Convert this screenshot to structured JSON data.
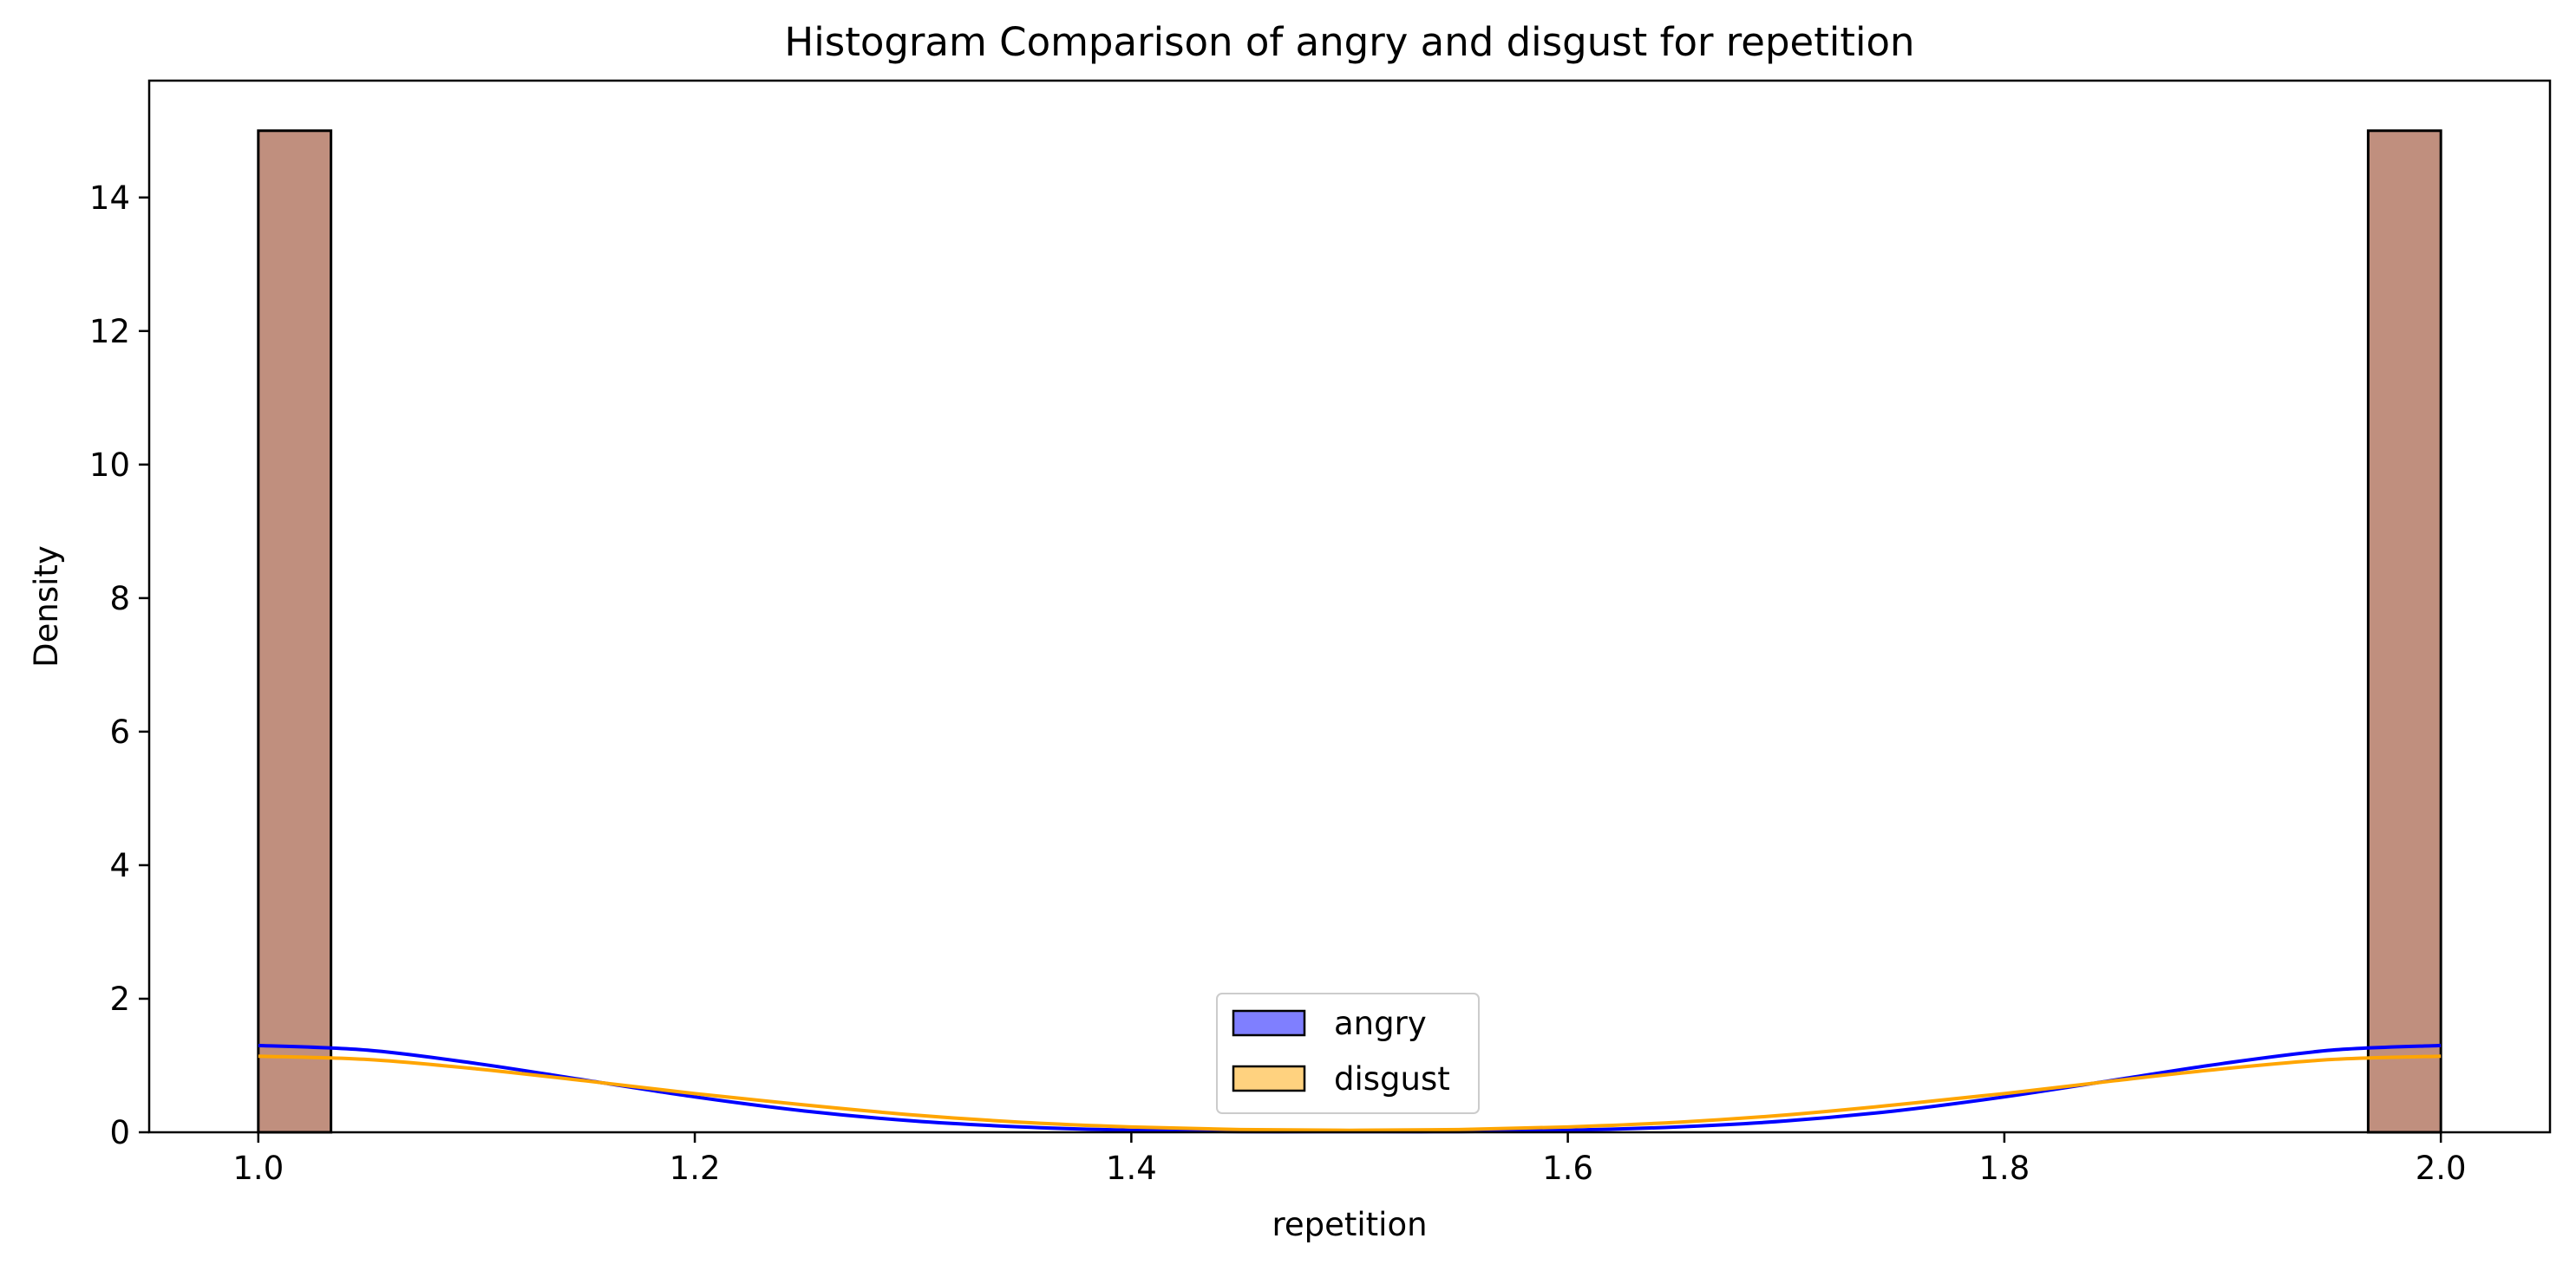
{
  "chart_data": {
    "type": "bar",
    "title": "Histogram Comparison of angry and disgust for repetition",
    "xlabel": "repetition",
    "ylabel": "Density",
    "xlim": [
      0.95,
      2.05
    ],
    "ylim": [
      0,
      15.75
    ],
    "x_ticks": [
      1.0,
      1.2,
      1.4,
      1.6,
      1.8,
      2.0
    ],
    "x_tick_labels": [
      "1.0",
      "1.2",
      "1.4",
      "1.6",
      "1.8",
      "2.0"
    ],
    "y_ticks": [
      0,
      2,
      4,
      6,
      8,
      10,
      12,
      14
    ],
    "y_tick_labels": [
      "0",
      "2",
      "4",
      "6",
      "8",
      "10",
      "12",
      "14"
    ],
    "grid": false,
    "legend_position": "bottom-center",
    "bars": [
      {
        "x_start": 1.0,
        "x_end": 1.0333,
        "height": 15.0
      },
      {
        "x_start": 1.9667,
        "x_end": 2.0,
        "height": 15.0
      }
    ],
    "bar_color": "#c08f7e",
    "series": [
      {
        "name": "angry",
        "color": "#0000ff",
        "legend_fill": "#7f7fff",
        "kde": {
          "x": [
            1.0,
            1.05,
            1.1,
            1.15,
            1.2,
            1.25,
            1.3,
            1.35,
            1.4,
            1.45,
            1.5,
            1.55,
            1.6,
            1.65,
            1.7,
            1.75,
            1.8,
            1.85,
            1.9,
            1.95,
            2.0
          ],
          "y": [
            1.3,
            1.23,
            1.03,
            0.78,
            0.53,
            0.32,
            0.17,
            0.08,
            0.03,
            0.01,
            0.01,
            0.01,
            0.03,
            0.08,
            0.17,
            0.32,
            0.53,
            0.78,
            1.03,
            1.23,
            1.3
          ]
        }
      },
      {
        "name": "disgust",
        "color": "#ffa500",
        "legend_fill": "#ffd27f",
        "kde": {
          "x": [
            1.0,
            1.05,
            1.1,
            1.15,
            1.2,
            1.25,
            1.3,
            1.35,
            1.4,
            1.45,
            1.5,
            1.55,
            1.6,
            1.65,
            1.7,
            1.75,
            1.8,
            1.85,
            1.9,
            1.95,
            2.0
          ],
          "y": [
            1.14,
            1.09,
            0.95,
            0.77,
            0.58,
            0.41,
            0.26,
            0.15,
            0.08,
            0.04,
            0.03,
            0.04,
            0.08,
            0.15,
            0.26,
            0.41,
            0.58,
            0.77,
            0.95,
            1.09,
            1.14
          ]
        }
      }
    ]
  }
}
